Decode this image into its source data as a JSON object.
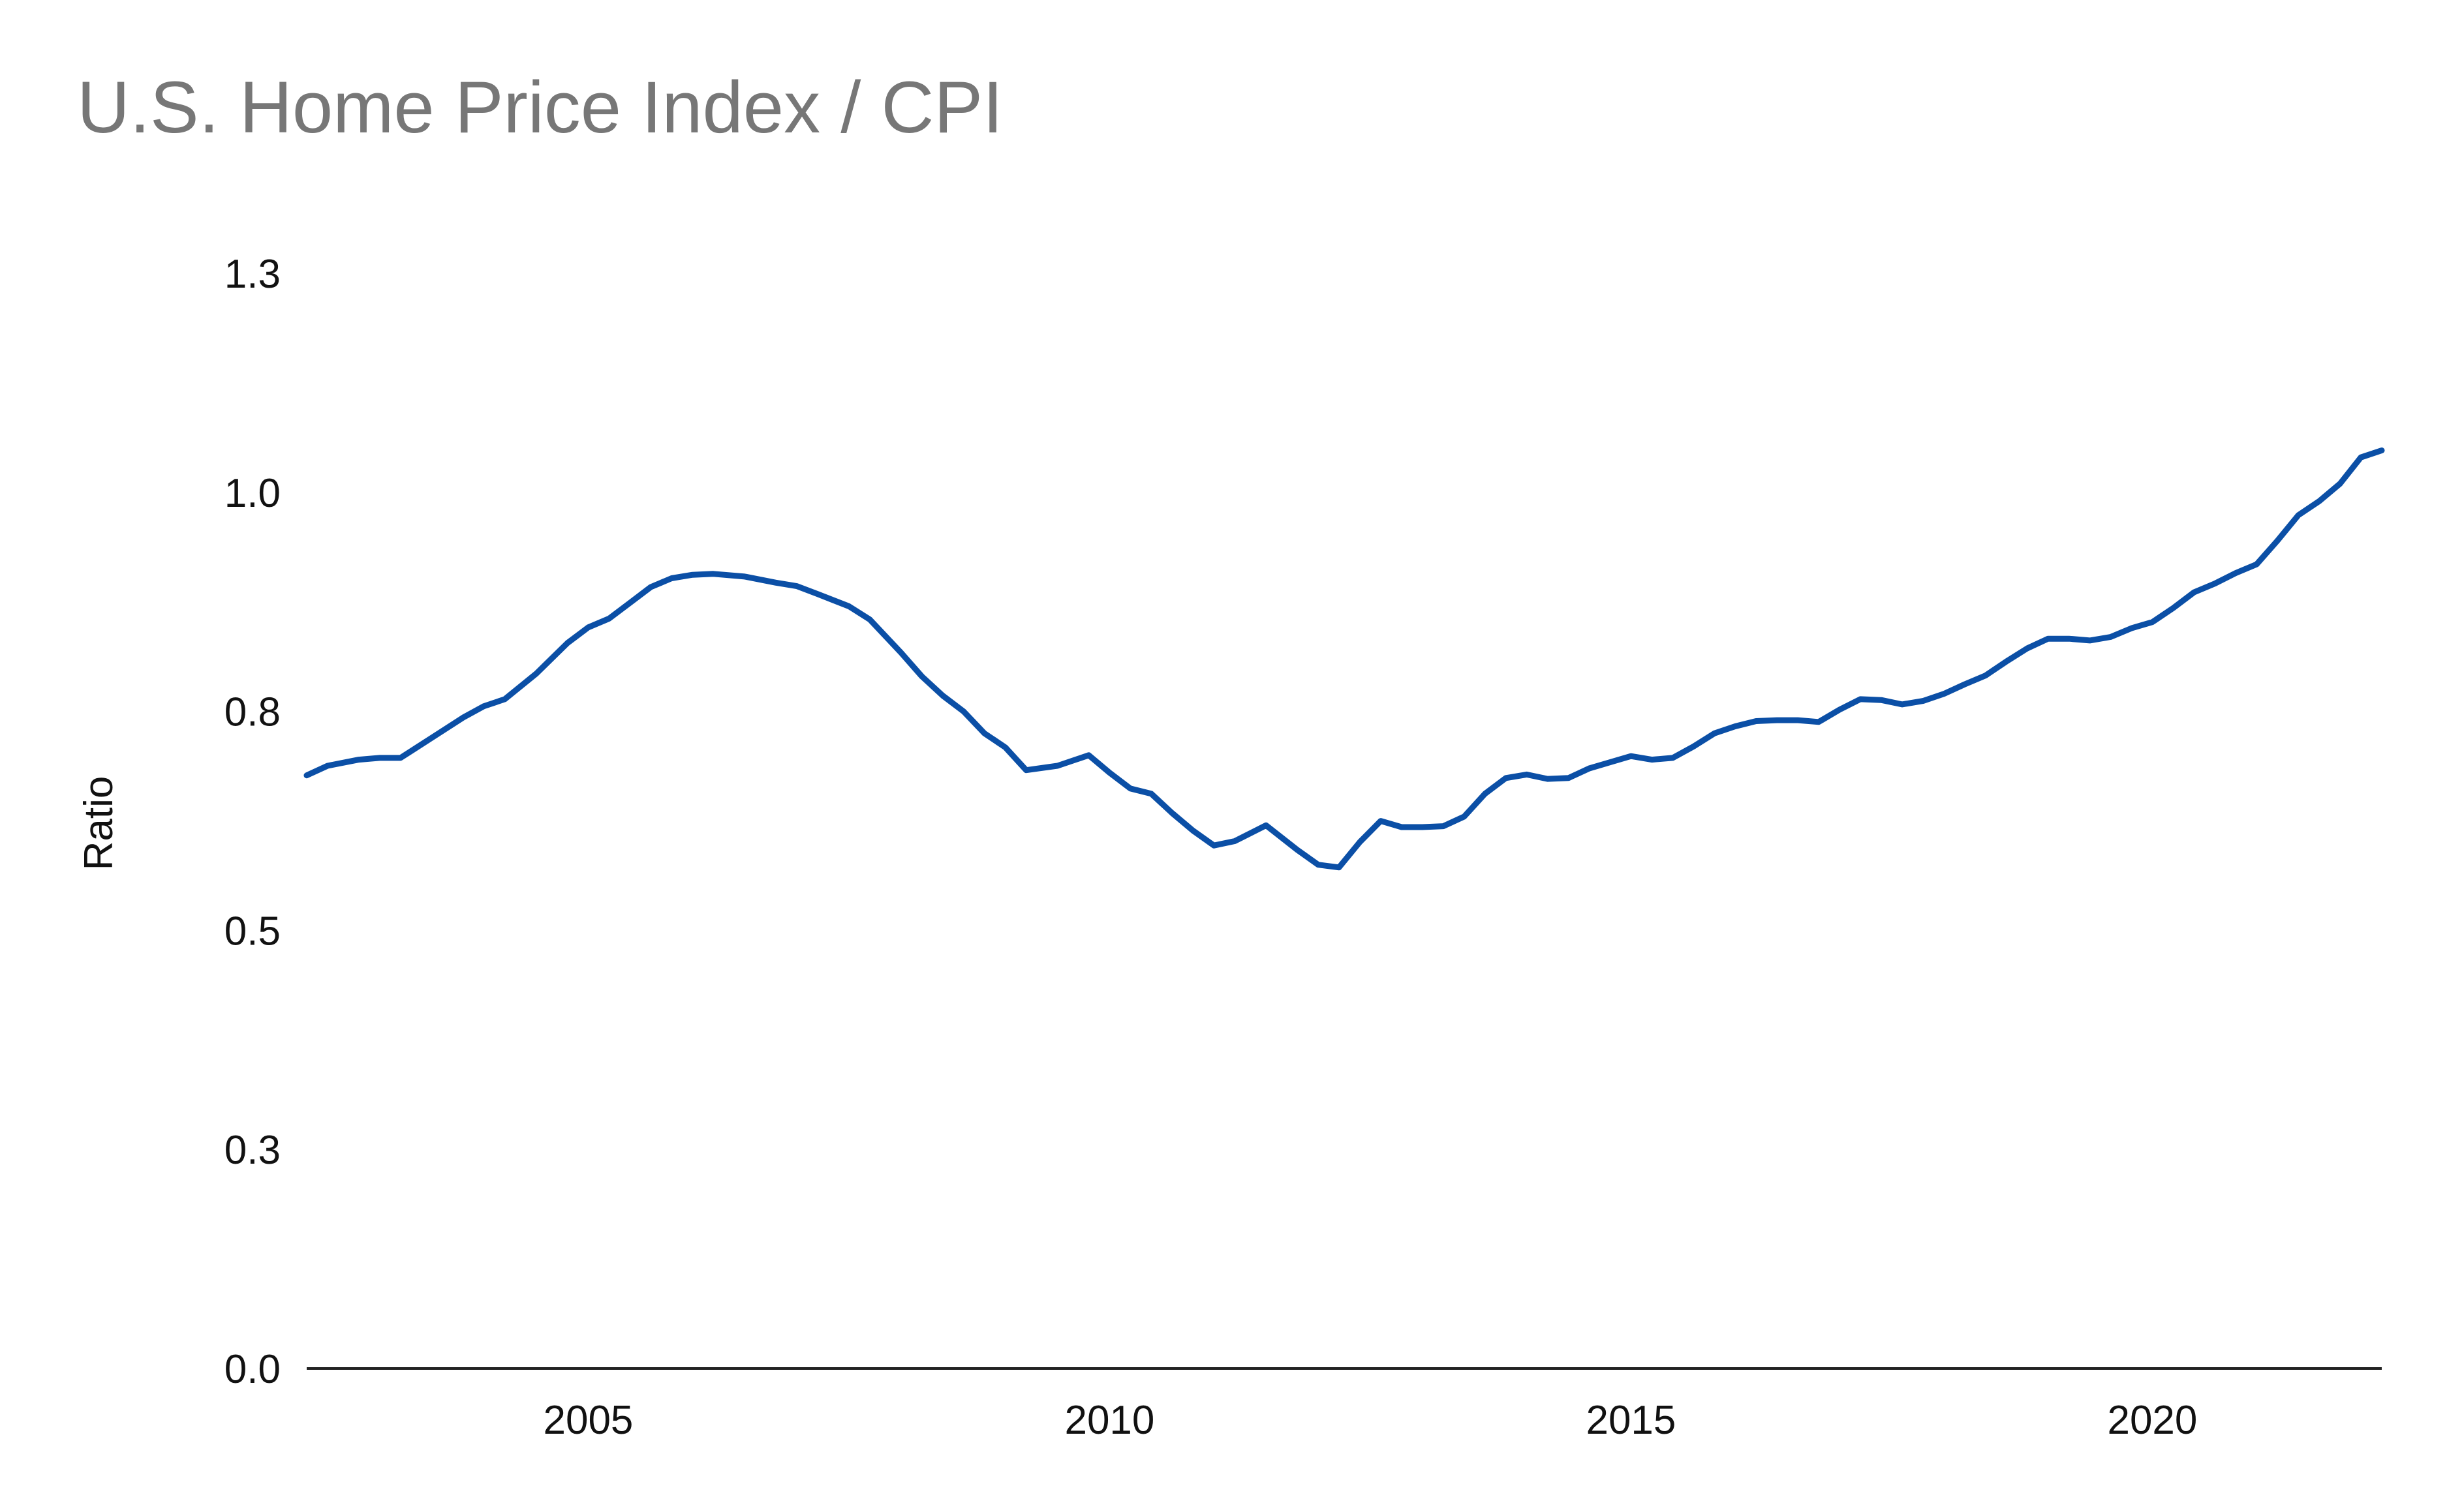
{
  "chart_data": {
    "type": "line",
    "title": "U.S. Home Price Index / CPI",
    "xlabel": "",
    "ylabel": "Ratio",
    "xlim": [
      2002.3,
      2022.2
    ],
    "ylim": [
      0.0,
      1.3
    ],
    "x_ticks": [
      {
        "value": 2005,
        "label": "2005"
      },
      {
        "value": 2010,
        "label": "2010"
      },
      {
        "value": 2015,
        "label": "2015"
      },
      {
        "value": 2020,
        "label": "2020"
      }
    ],
    "y_ticks": [
      {
        "value": 0.0,
        "label": "0.0"
      },
      {
        "value": 0.25,
        "label": "0.3"
      },
      {
        "value": 0.5,
        "label": "0.5"
      },
      {
        "value": 0.75,
        "label": "0.8"
      },
      {
        "value": 1.0,
        "label": "1.0"
      },
      {
        "value": 1.25,
        "label": "1.3"
      }
    ],
    "grid": false,
    "legend": "none",
    "series": [
      {
        "color": "#0b4fa6",
        "x": [
          2002.3,
          2002.5,
          2002.8,
          2003.0,
          2003.2,
          2003.5,
          2003.8,
          2004.0,
          2004.2,
          2004.5,
          2004.8,
          2005.0,
          2005.2,
          2005.4,
          2005.6,
          2005.8,
          2006.0,
          2006.2,
          2006.5,
          2006.8,
          2007.0,
          2007.2,
          2007.5,
          2007.7,
          2008.0,
          2008.2,
          2008.4,
          2008.6,
          2008.8,
          2009.0,
          2009.2,
          2009.5,
          2009.8,
          2010.0,
          2010.2,
          2010.4,
          2010.6,
          2010.8,
          2011.0,
          2011.2,
          2011.5,
          2011.8,
          2012.0,
          2012.2,
          2012.4,
          2012.6,
          2012.8,
          2013.0,
          2013.2,
          2013.4,
          2013.6,
          2013.8,
          2014.0,
          2014.2,
          2014.4,
          2014.6,
          2014.8,
          2015.0,
          2015.2,
          2015.4,
          2015.6,
          2015.8,
          2016.0,
          2016.2,
          2016.4,
          2016.6,
          2016.8,
          2017.0,
          2017.2,
          2017.4,
          2017.6,
          2017.8,
          2018.0,
          2018.2,
          2018.4,
          2018.6,
          2018.8,
          2019.0,
          2019.2,
          2019.4,
          2019.6,
          2019.8,
          2020.0,
          2020.2,
          2020.4,
          2020.6,
          2020.8,
          2021.0,
          2021.2,
          2021.4,
          2021.6,
          2021.8,
          2022.0,
          2022.2
        ],
        "values": [
          0.677,
          0.688,
          0.695,
          0.697,
          0.697,
          0.72,
          0.743,
          0.756,
          0.764,
          0.793,
          0.828,
          0.846,
          0.856,
          0.874,
          0.892,
          0.902,
          0.906,
          0.907,
          0.904,
          0.897,
          0.893,
          0.884,
          0.87,
          0.855,
          0.817,
          0.79,
          0.768,
          0.75,
          0.725,
          0.709,
          0.683,
          0.688,
          0.7,
          0.68,
          0.662,
          0.656,
          0.634,
          0.614,
          0.597,
          0.602,
          0.62,
          0.592,
          0.575,
          0.572,
          0.601,
          0.625,
          0.618,
          0.618,
          0.619,
          0.63,
          0.656,
          0.674,
          0.678,
          0.673,
          0.674,
          0.685,
          0.692,
          0.699,
          0.695,
          0.697,
          0.71,
          0.725,
          0.733,
          0.739,
          0.74,
          0.74,
          0.738,
          0.752,
          0.764,
          0.763,
          0.758,
          0.762,
          0.77,
          0.781,
          0.791,
          0.807,
          0.822,
          0.833,
          0.833,
          0.831,
          0.835,
          0.845,
          0.852,
          0.868,
          0.886,
          0.896,
          0.908,
          0.918,
          0.945,
          0.974,
          0.99,
          1.01,
          1.04,
          1.048
        ]
      }
    ]
  }
}
